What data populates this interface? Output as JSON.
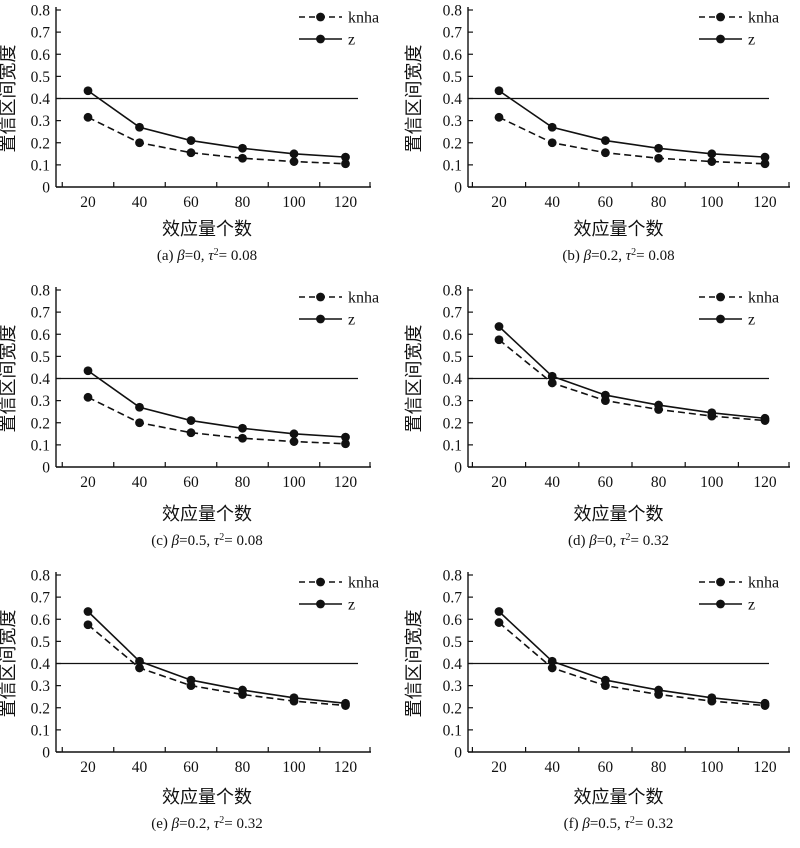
{
  "figure": {
    "background": "#ffffff",
    "ink_color": "#111111",
    "legend": {
      "position": "top-right",
      "items": [
        {
          "label": "knha",
          "line_style": "dashed",
          "marker": "filled-circle"
        },
        {
          "label": "z",
          "line_style": "solid",
          "marker": "filled-circle"
        }
      ]
    },
    "axes": {
      "ylabel": "置信区间宽度",
      "xlabel": "效应量个数",
      "ylim": [
        0,
        0.8
      ],
      "y_tick_labels": [
        "0",
        "0.1",
        "0.2",
        "0.3",
        "0.4",
        "0.5",
        "0.6",
        "0.7",
        "0.8"
      ],
      "x_tick_labels": [
        "20",
        "40",
        "60",
        "80",
        "100",
        "120"
      ],
      "reference_line_y": 0.4,
      "grid": false
    }
  },
  "chart_data": [
    {
      "id": "a",
      "type": "line",
      "title": "(a) β=0, τ²= 0.08",
      "caption_parts": {
        "prefix": "(a) ",
        "beta": "β",
        "beta_eq": "=0, ",
        "tau": "τ",
        "tau_sup": "2",
        "tau_eq": "= 0.08"
      },
      "params": {
        "beta": 0,
        "tau2": 0.08
      },
      "x": [
        20,
        40,
        60,
        80,
        100,
        120
      ],
      "xlabel": "效应量个数",
      "ylabel": "置信区间宽度",
      "ylim": [
        0,
        0.8
      ],
      "reference_line_y": 0.4,
      "legend_position": "top-right",
      "series": [
        {
          "name": "knha",
          "style": "dashed",
          "values": [
            0.315,
            0.2,
            0.155,
            0.13,
            0.115,
            0.105
          ]
        },
        {
          "name": "z",
          "style": "solid",
          "values": [
            0.435,
            0.27,
            0.21,
            0.175,
            0.15,
            0.135
          ]
        }
      ]
    },
    {
      "id": "b",
      "type": "line",
      "title": "(b) β=0.2, τ²= 0.08",
      "caption_parts": {
        "prefix": "(b) ",
        "beta": "β",
        "beta_eq": "=0.2, ",
        "tau": "τ",
        "tau_sup": "2",
        "tau_eq": "= 0.08"
      },
      "params": {
        "beta": 0.2,
        "tau2": 0.08
      },
      "x": [
        20,
        40,
        60,
        80,
        100,
        120
      ],
      "xlabel": "效应量个数",
      "ylabel": "置信区间宽度",
      "ylim": [
        0,
        0.8
      ],
      "reference_line_y": 0.4,
      "legend_position": "top-right",
      "series": [
        {
          "name": "knha",
          "style": "dashed",
          "values": [
            0.315,
            0.2,
            0.155,
            0.13,
            0.115,
            0.105
          ]
        },
        {
          "name": "z",
          "style": "solid",
          "values": [
            0.435,
            0.27,
            0.21,
            0.175,
            0.15,
            0.135
          ]
        }
      ]
    },
    {
      "id": "c",
      "type": "line",
      "title": "(c) β=0.5, τ²= 0.08",
      "caption_parts": {
        "prefix": "(c) ",
        "beta": "β",
        "beta_eq": "=0.5, ",
        "tau": "τ",
        "tau_sup": "2",
        "tau_eq": "= 0.08"
      },
      "params": {
        "beta": 0.5,
        "tau2": 0.08
      },
      "x": [
        20,
        40,
        60,
        80,
        100,
        120
      ],
      "xlabel": "效应量个数",
      "ylabel": "置信区间宽度",
      "ylim": [
        0,
        0.8
      ],
      "reference_line_y": 0.4,
      "legend_position": "top-right",
      "series": [
        {
          "name": "knha",
          "style": "dashed",
          "values": [
            0.315,
            0.2,
            0.155,
            0.13,
            0.115,
            0.105
          ]
        },
        {
          "name": "z",
          "style": "solid",
          "values": [
            0.435,
            0.27,
            0.21,
            0.175,
            0.15,
            0.135
          ]
        }
      ]
    },
    {
      "id": "d",
      "type": "line",
      "title": "(d) β=0, τ²= 0.32",
      "caption_parts": {
        "prefix": "(d) ",
        "beta": "β",
        "beta_eq": "=0, ",
        "tau": "τ",
        "tau_sup": "2",
        "tau_eq": "= 0.32"
      },
      "params": {
        "beta": 0,
        "tau2": 0.32
      },
      "x": [
        20,
        40,
        60,
        80,
        100,
        120
      ],
      "xlabel": "效应量个数",
      "ylabel": "置信区间宽度",
      "ylim": [
        0,
        0.8
      ],
      "reference_line_y": 0.4,
      "legend_position": "top-right",
      "series": [
        {
          "name": "knha",
          "style": "dashed",
          "values": [
            0.575,
            0.38,
            0.3,
            0.26,
            0.23,
            0.21
          ]
        },
        {
          "name": "z",
          "style": "solid",
          "values": [
            0.635,
            0.41,
            0.325,
            0.28,
            0.245,
            0.22
          ]
        }
      ]
    },
    {
      "id": "e",
      "type": "line",
      "title": "(e) β=0.2, τ²= 0.32",
      "caption_parts": {
        "prefix": "(e) ",
        "beta": "β",
        "beta_eq": "=0.2, ",
        "tau": "τ",
        "tau_sup": "2",
        "tau_eq": "= 0.32"
      },
      "params": {
        "beta": 0.2,
        "tau2": 0.32
      },
      "x": [
        20,
        40,
        60,
        80,
        100,
        120
      ],
      "xlabel": "效应量个数",
      "ylabel": "置信区间宽度",
      "ylim": [
        0,
        0.8
      ],
      "reference_line_y": 0.4,
      "legend_position": "top-right",
      "series": [
        {
          "name": "knha",
          "style": "dashed",
          "values": [
            0.575,
            0.38,
            0.3,
            0.26,
            0.23,
            0.21
          ]
        },
        {
          "name": "z",
          "style": "solid",
          "values": [
            0.635,
            0.41,
            0.325,
            0.28,
            0.245,
            0.22
          ]
        }
      ]
    },
    {
      "id": "f",
      "type": "line",
      "title": "(f) β=0.5, τ²= 0.32",
      "caption_parts": {
        "prefix": "(f) ",
        "beta": "β",
        "beta_eq": "=0.5, ",
        "tau": "τ",
        "tau_sup": "2",
        "tau_eq": "= 0.32"
      },
      "params": {
        "beta": 0.5,
        "tau2": 0.32
      },
      "x": [
        20,
        40,
        60,
        80,
        100,
        120
      ],
      "xlabel": "效应量个数",
      "ylabel": "置信区间宽度",
      "ylim": [
        0,
        0.8
      ],
      "reference_line_y": 0.4,
      "legend_position": "top-right",
      "series": [
        {
          "name": "knha",
          "style": "dashed",
          "values": [
            0.585,
            0.38,
            0.3,
            0.26,
            0.23,
            0.21
          ]
        },
        {
          "name": "z",
          "style": "solid",
          "values": [
            0.635,
            0.41,
            0.325,
            0.28,
            0.245,
            0.22
          ]
        }
      ]
    }
  ]
}
